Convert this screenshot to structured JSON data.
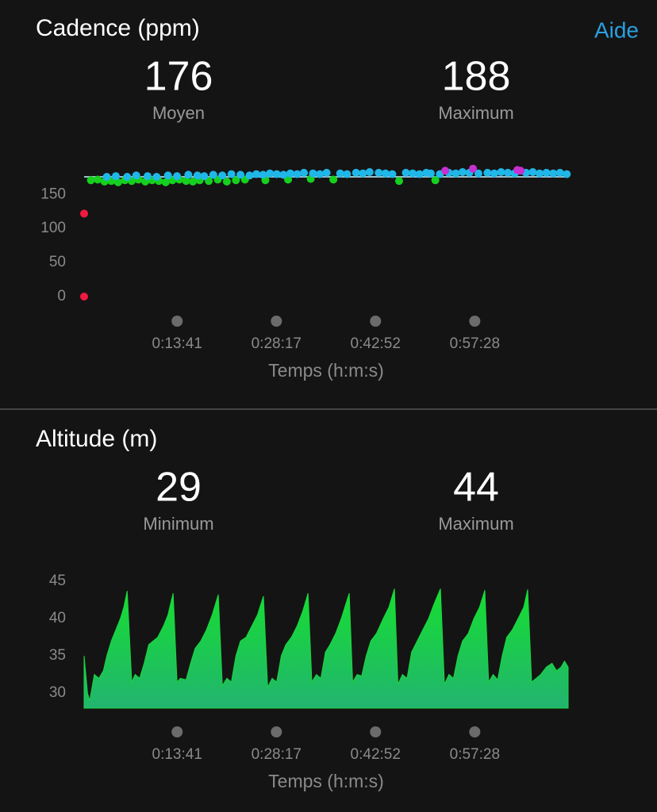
{
  "help_link": "Aide",
  "chart_data": [
    {
      "type": "scatter",
      "title": "Cadence (ppm)",
      "stats": [
        {
          "value": 176,
          "label": "Moyen"
        },
        {
          "value": 188,
          "label": "Maximum"
        }
      ],
      "x_label": "Temps (h:m:s)",
      "xlim": [
        0,
        4272
      ],
      "xticks": [
        {
          "value": 821,
          "label": "0:13:41"
        },
        {
          "value": 1697,
          "label": "0:28:17"
        },
        {
          "value": 2572,
          "label": "0:42:52"
        },
        {
          "value": 3448,
          "label": "0:57:28"
        }
      ],
      "ylim": [
        0,
        190
      ],
      "yticks": [
        0,
        50,
        100,
        150
      ],
      "series": [
        {
          "color": "#f0193f",
          "x": [
            0,
            0
          ],
          "values": [
            122,
            0
          ]
        },
        {
          "color": "#16d01f",
          "x": [
            60,
            120,
            180,
            240,
            300,
            360,
            420,
            480,
            540,
            600,
            660,
            720,
            780,
            840,
            900,
            960,
            1020,
            1100,
            1180,
            1260,
            1340,
            1420,
            1600,
            1800,
            2000,
            2200,
            2780,
            3100
          ],
          "values": [
            171,
            172,
            169,
            170,
            168,
            171,
            170,
            172,
            169,
            171,
            170,
            168,
            171,
            172,
            170,
            169,
            171,
            170,
            172,
            169,
            171,
            172,
            171,
            172,
            173,
            172,
            170,
            171
          ]
        },
        {
          "color": "#1fb6e8",
          "x": [
            200,
            280,
            380,
            460,
            560,
            640,
            740,
            820,
            920,
            1000,
            1060,
            1140,
            1220,
            1300,
            1380,
            1460,
            1520,
            1580,
            1640,
            1700,
            1760,
            1820,
            1880,
            1940,
            2020,
            2080,
            2140,
            2260,
            2320,
            2400,
            2460,
            2520,
            2600,
            2660,
            2720,
            2840,
            2900,
            2960,
            3020,
            3060,
            3140,
            3220,
            3280,
            3340,
            3400,
            3480,
            3560,
            3620,
            3680,
            3740,
            3800,
            3900,
            3960,
            4020,
            4080,
            4140,
            4200,
            4260
          ],
          "values": [
            176,
            177,
            176,
            178,
            177,
            176,
            178,
            177,
            179,
            178,
            177,
            179,
            178,
            180,
            179,
            178,
            180,
            179,
            181,
            180,
            179,
            181,
            180,
            182,
            181,
            180,
            182,
            181,
            180,
            182,
            181,
            183,
            182,
            181,
            180,
            182,
            181,
            180,
            182,
            181,
            180,
            182,
            181,
            183,
            182,
            181,
            182,
            181,
            183,
            182,
            181,
            182,
            183,
            181,
            182,
            181,
            182,
            180
          ]
        },
        {
          "color": "#c630d0",
          "x": [
            3187,
            3432,
            3824,
            3852
          ],
          "values": [
            185,
            188,
            186,
            185
          ]
        }
      ]
    },
    {
      "type": "area",
      "title": "Altitude (m)",
      "stats": [
        {
          "value": 29,
          "label": "Minimum"
        },
        {
          "value": 44,
          "label": "Maximum"
        }
      ],
      "x_label": "Temps (h:m:s)",
      "xlim": [
        0,
        4272
      ],
      "xticks": [
        {
          "value": 821,
          "label": "0:13:41"
        },
        {
          "value": 1697,
          "label": "0:28:17"
        },
        {
          "value": 2572,
          "label": "0:42:52"
        },
        {
          "value": 3448,
          "label": "0:57:28"
        }
      ],
      "ylim": [
        28,
        45
      ],
      "yticks": [
        30,
        35,
        40,
        45
      ],
      "color": "#19d83b",
      "x": [
        0,
        30,
        50,
        90,
        130,
        170,
        200,
        240,
        280,
        320,
        350,
        380,
        420,
        450,
        490,
        530,
        570,
        610,
        650,
        700,
        740,
        786,
        820,
        850,
        900,
        940,
        980,
        1030,
        1080,
        1130,
        1184,
        1220,
        1260,
        1300,
        1340,
        1380,
        1430,
        1480,
        1530,
        1583,
        1620,
        1660,
        1700,
        1740,
        1780,
        1830,
        1880,
        1930,
        1976,
        2010,
        2050,
        2090,
        2130,
        2170,
        2220,
        2270,
        2340,
        2370,
        2410,
        2450,
        2490,
        2530,
        2580,
        2640,
        2690,
        2739,
        2770,
        2810,
        2850,
        2890,
        2940,
        2990,
        3040,
        3090,
        3145,
        3180,
        3220,
        3260,
        3300,
        3340,
        3390,
        3440,
        3490,
        3537,
        3570,
        3610,
        3650,
        3690,
        3730,
        3780,
        3830,
        3880,
        3915,
        3950,
        3990,
        4030,
        4080,
        4130,
        4170,
        4210,
        4240,
        4272
      ],
      "values": [
        35,
        30,
        29,
        32.5,
        32,
        33,
        35,
        37,
        38.5,
        40,
        41.5,
        43.7,
        31.5,
        32.5,
        32,
        34,
        36.5,
        37,
        37.5,
        39,
        40.5,
        43.4,
        31.5,
        32,
        31.8,
        34,
        36,
        37,
        38.5,
        40.5,
        43.2,
        31,
        32,
        31.5,
        35,
        37,
        37.5,
        39,
        40.5,
        43,
        30.8,
        32,
        31.5,
        35,
        36.5,
        37.5,
        39,
        41,
        43.4,
        31.5,
        32.5,
        32,
        35.5,
        36.5,
        38,
        40,
        43.4,
        31.5,
        32.5,
        32.3,
        35,
        37,
        38,
        40,
        41.5,
        44,
        31.2,
        32.5,
        32,
        35.5,
        37,
        38.5,
        40,
        42,
        44,
        31.2,
        32.5,
        32,
        35,
        37,
        38,
        40,
        41.5,
        43.8,
        31.5,
        32.5,
        31.8,
        35,
        37.5,
        38.5,
        40,
        41.5,
        43.9,
        31.5,
        32,
        32.5,
        33.5,
        34,
        33,
        33.5,
        34.3,
        33.5
      ]
    }
  ]
}
